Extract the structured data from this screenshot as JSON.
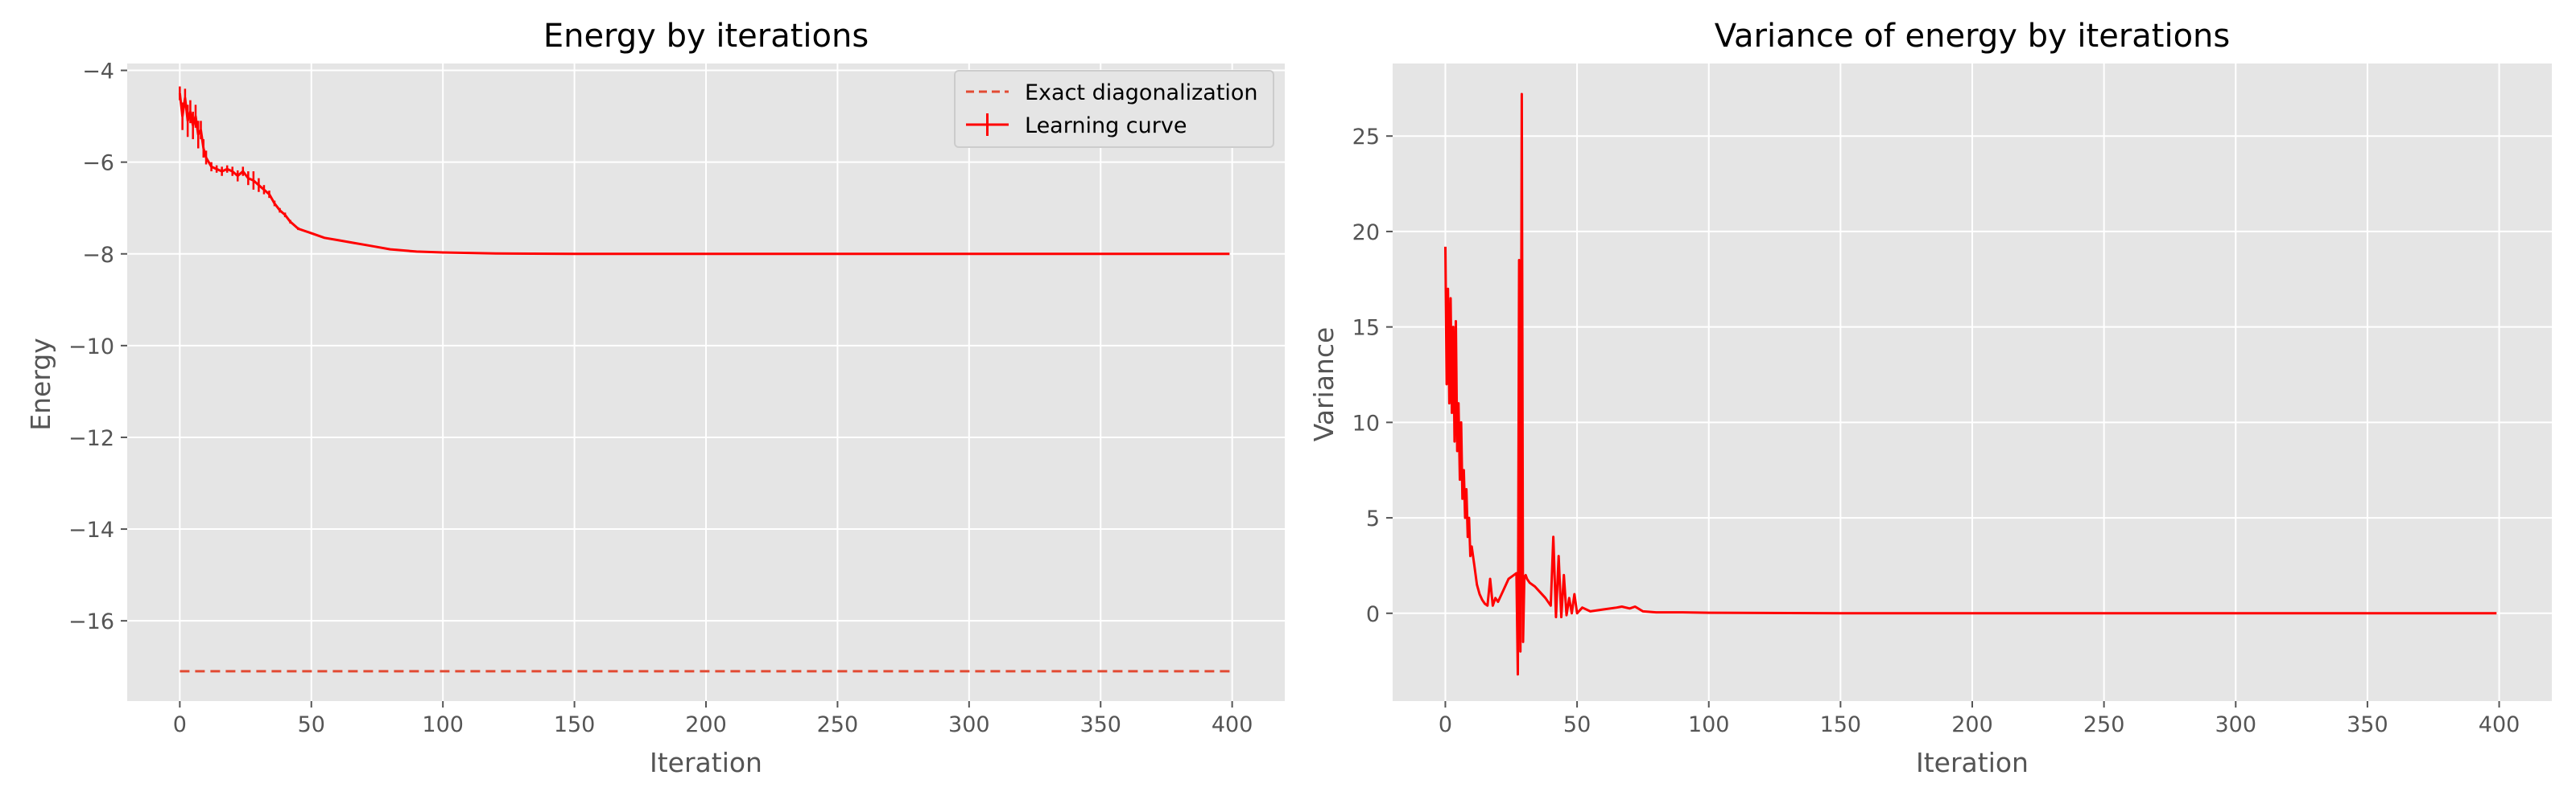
{
  "figure": {
    "background": "#ffffff",
    "axes_background": "#e5e5e5",
    "grid_color": "#ffffff",
    "line_color": "#ff0000"
  },
  "chart_data": [
    {
      "type": "line",
      "title": "Energy by iterations",
      "xlabel": "Iteration",
      "ylabel": "Energy",
      "xlim": [
        -20,
        420
      ],
      "ylim": [
        -17.75,
        -3.85
      ],
      "xticks": [
        0,
        50,
        100,
        150,
        200,
        250,
        300,
        350,
        400
      ],
      "yticks": [
        -16,
        -14,
        -12,
        -10,
        -8,
        -6,
        -4
      ],
      "grid": true,
      "legend_position": "upper right",
      "series": [
        {
          "name": "Exact diagonalization",
          "style": "dashed",
          "color": "#e24a33",
          "x": [
            0,
            399
          ],
          "y": [
            -17.1,
            -17.1
          ]
        },
        {
          "name": "Learning curve",
          "style": "solid-with-errorbars",
          "color": "#ff0000",
          "x": [
            0,
            1,
            2,
            3,
            4,
            5,
            6,
            7,
            8,
            9,
            10,
            12,
            14,
            16,
            18,
            20,
            22,
            24,
            26,
            28,
            30,
            32,
            34,
            36,
            38,
            40,
            42,
            45,
            50,
            55,
            60,
            65,
            70,
            75,
            80,
            90,
            100,
            120,
            150,
            200,
            250,
            300,
            350,
            399
          ],
          "y": [
            -4.5,
            -5.0,
            -4.6,
            -5.1,
            -4.9,
            -5.2,
            -5.0,
            -5.4,
            -5.3,
            -5.7,
            -5.9,
            -6.1,
            -6.15,
            -6.2,
            -6.15,
            -6.2,
            -6.3,
            -6.2,
            -6.35,
            -6.4,
            -6.5,
            -6.6,
            -6.7,
            -6.9,
            -7.05,
            -7.15,
            -7.3,
            -7.45,
            -7.55,
            -7.65,
            -7.7,
            -7.75,
            -7.8,
            -7.85,
            -7.9,
            -7.95,
            -7.97,
            -7.99,
            -8.0,
            -8.0,
            -8.0,
            -8.0,
            -8.0,
            -8.0
          ],
          "err": [
            0.15,
            0.3,
            0.2,
            0.35,
            0.25,
            0.3,
            0.25,
            0.3,
            0.2,
            0.2,
            0.15,
            0.1,
            0.08,
            0.1,
            0.08,
            0.1,
            0.12,
            0.1,
            0.15,
            0.2,
            0.15,
            0.1,
            0.08,
            0.06,
            0.05,
            0.05,
            0.04,
            0.03,
            0.02,
            0.02,
            0.02,
            0.02,
            0.02,
            0.01,
            0.01,
            0.01,
            0.01,
            0.005,
            0,
            0,
            0,
            0,
            0,
            0
          ]
        }
      ]
    },
    {
      "type": "line",
      "title": "Variance of energy by iterations",
      "xlabel": "Iteration",
      "ylabel": "Variance",
      "xlim": [
        -20,
        420
      ],
      "ylim": [
        -4.6,
        28.8
      ],
      "xticks": [
        0,
        50,
        100,
        150,
        200,
        250,
        300,
        350,
        400
      ],
      "yticks": [
        0,
        5,
        10,
        15,
        20,
        25
      ],
      "grid": true,
      "series": [
        {
          "color": "#ff0000",
          "x": [
            0,
            0.5,
            1,
            1.5,
            2,
            2.5,
            3,
            3.5,
            4,
            4.5,
            5,
            5.5,
            6,
            6.5,
            7,
            7.5,
            8,
            8.5,
            9,
            9.5,
            10,
            11,
            12,
            13,
            14,
            15,
            16,
            17,
            18,
            19,
            20,
            22,
            24,
            26,
            27,
            27.5,
            28,
            28.5,
            29,
            29.5,
            30,
            30.5,
            31,
            32,
            34,
            36,
            38,
            40,
            41,
            42,
            43,
            44,
            45,
            46,
            47,
            48,
            49,
            50,
            52,
            55,
            60,
            65,
            67,
            70,
            72,
            75,
            80,
            90,
            100,
            150,
            200,
            250,
            300,
            350,
            399
          ],
          "y": [
            19.2,
            12.0,
            17.0,
            11.0,
            16.5,
            10.5,
            15.0,
            9.0,
            15.3,
            8.5,
            11.0,
            7.0,
            10.0,
            6.0,
            7.5,
            5.0,
            6.5,
            4.0,
            5.0,
            3.0,
            3.5,
            2.5,
            1.5,
            1.0,
            0.7,
            0.5,
            0.4,
            1.8,
            0.4,
            0.8,
            0.6,
            1.2,
            1.8,
            2.0,
            2.1,
            -3.2,
            18.5,
            -2.0,
            27.2,
            -1.5,
            1.9,
            2.0,
            1.8,
            1.6,
            1.4,
            1.1,
            0.8,
            0.4,
            4.0,
            -0.2,
            3.0,
            -0.2,
            2.0,
            -0.1,
            0.8,
            0.0,
            1.0,
            0.0,
            0.3,
            0.1,
            0.2,
            0.3,
            0.35,
            0.25,
            0.35,
            0.1,
            0.05,
            0.05,
            0.03,
            0.0,
            0.0,
            0.0,
            0.0,
            0.0,
            0.0
          ]
        }
      ]
    }
  ]
}
